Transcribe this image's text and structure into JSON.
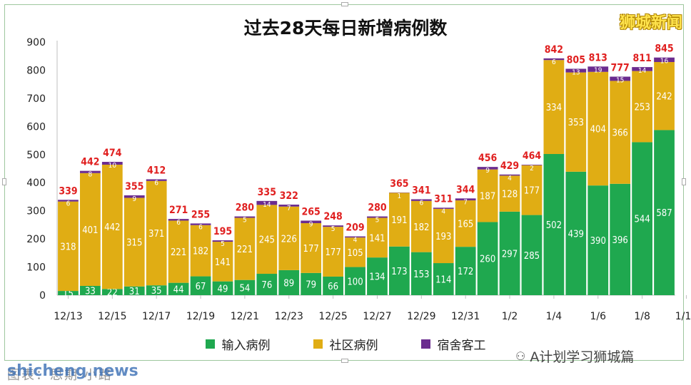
{
  "title": "过去28天每日新增病例数",
  "brand": "狮城新闻",
  "wechat": "A计划学习狮城篇",
  "watermark": "shicheng.news",
  "caption": "图表：思期·小路",
  "colors": {
    "imported": "#1fa84f",
    "community": "#e0ad14",
    "dorm": "#6b2c8f",
    "total_label": "#e02020",
    "inner_label": "#ffffff"
  },
  "chart_data": {
    "type": "bar",
    "stacked": true,
    "title": "过去28天每日新增病例数",
    "ylim": [
      0,
      900
    ],
    "yticks": [
      0,
      100,
      200,
      300,
      400,
      500,
      600,
      700,
      800,
      900
    ],
    "grid": false,
    "legend_position": "bottom",
    "x_tick_labels": [
      "12/13",
      "12/15",
      "12/17",
      "12/19",
      "12/21",
      "12/23",
      "12/25",
      "12/27",
      "12/29",
      "12/31",
      "1/2",
      "1/4",
      "1/6",
      "1/8",
      "1/10"
    ],
    "categories": [
      "12/13",
      "12/14",
      "12/15",
      "12/16",
      "12/17",
      "12/18",
      "12/19",
      "12/20",
      "12/21",
      "12/22",
      "12/23",
      "12/24",
      "12/25",
      "12/26",
      "12/27",
      "12/28",
      "12/29",
      "12/30",
      "12/31",
      "1/1",
      "1/2",
      "1/3",
      "1/4",
      "1/5",
      "1/6",
      "1/7",
      "1/8",
      "1/9"
    ],
    "series": [
      {
        "name": "输入病例",
        "values": [
          15,
          33,
          22,
          31,
          35,
          44,
          67,
          49,
          54,
          76,
          89,
          79,
          66,
          100,
          134,
          173,
          153,
          114,
          172,
          260,
          297,
          285,
          502,
          439,
          390,
          396,
          544,
          587
        ]
      },
      {
        "name": "社区病例",
        "values": [
          318,
          401,
          442,
          315,
          371,
          221,
          182,
          141,
          221,
          245,
          226,
          177,
          177,
          105,
          141,
          191,
          182,
          193,
          165,
          187,
          128,
          177,
          334,
          353,
          404,
          366,
          253,
          242
        ]
      },
      {
        "name": "宿舍客工",
        "values": [
          6,
          8,
          10,
          9,
          6,
          6,
          6,
          5,
          5,
          14,
          7,
          9,
          5,
          4,
          5,
          1,
          6,
          4,
          7,
          9,
          4,
          2,
          6,
          13,
          19,
          15,
          14,
          16
        ]
      }
    ],
    "totals": [
      339,
      442,
      474,
      355,
      412,
      271,
      255,
      195,
      280,
      335,
      322,
      265,
      248,
      209,
      280,
      365,
      341,
      311,
      344,
      456,
      429,
      464,
      842,
      805,
      813,
      777,
      811,
      845
    ]
  },
  "legend": [
    {
      "label": "输入病例",
      "key": "imported"
    },
    {
      "label": "社区病例",
      "key": "community"
    },
    {
      "label": "宿舍客工",
      "key": "dorm"
    }
  ]
}
